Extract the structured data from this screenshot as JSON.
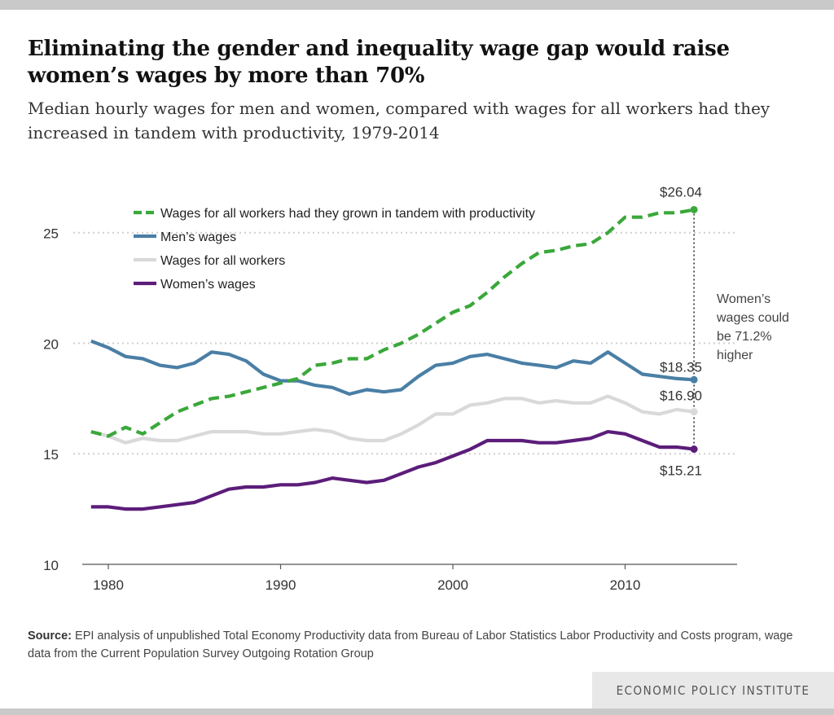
{
  "title": "Eliminating the gender and inequality wage gap would raise women’s wages by more than 70%",
  "subtitle": "Median hourly wages for men and women, compared with wages for all workers had they increased in tandem with productivity, 1979-2014",
  "source": {
    "label": "Source:",
    "text": " EPI analysis of unpublished Total Economy Productivity data from Bureau of Labor Statistics Labor Productivity and Costs program, wage data from the Current Population Survey Outgoing Rotation Group"
  },
  "footer": "ECONOMIC POLICY INSTITUTE",
  "annotation": {
    "lines": [
      "Women’s",
      "wages could",
      "be 71.2%",
      "higher"
    ]
  },
  "chart_data": {
    "type": "line",
    "x": [
      1979,
      1980,
      1981,
      1982,
      1983,
      1984,
      1985,
      1986,
      1987,
      1988,
      1989,
      1990,
      1991,
      1992,
      1993,
      1994,
      1995,
      1996,
      1997,
      1998,
      1999,
      2000,
      2001,
      2002,
      2003,
      2004,
      2005,
      2006,
      2007,
      2008,
      2009,
      2010,
      2011,
      2012,
      2013,
      2014
    ],
    "xticks": [
      1980,
      1990,
      2000,
      2010
    ],
    "yticks": [
      10,
      15,
      20,
      25
    ],
    "ylim": [
      10,
      26.5
    ],
    "xlim": [
      1977.4,
      2016.5
    ],
    "grid": true,
    "legend_position": "top-left",
    "series": [
      {
        "name": "Wages for all workers had they grown in tandem with productivity",
        "color": "#3aa83a",
        "dashed": true,
        "end_label": "$26.04",
        "values": [
          16.0,
          15.8,
          16.2,
          15.9,
          16.4,
          16.9,
          17.2,
          17.5,
          17.6,
          17.8,
          18.0,
          18.2,
          18.4,
          19.0,
          19.1,
          19.3,
          19.3,
          19.7,
          20.0,
          20.4,
          20.9,
          21.4,
          21.7,
          22.3,
          23.0,
          23.6,
          24.1,
          24.2,
          24.4,
          24.5,
          25.0,
          25.7,
          25.7,
          25.9,
          25.9,
          26.04
        ]
      },
      {
        "name": "Men’s wages",
        "color": "#4a7fa5",
        "dashed": false,
        "end_label": "$18.35",
        "values": [
          20.1,
          19.8,
          19.4,
          19.3,
          19.0,
          18.9,
          19.1,
          19.6,
          19.5,
          19.2,
          18.6,
          18.3,
          18.3,
          18.1,
          18.0,
          17.7,
          17.9,
          17.8,
          17.9,
          18.5,
          19.0,
          19.1,
          19.4,
          19.5,
          19.3,
          19.1,
          19.0,
          18.9,
          19.2,
          19.1,
          19.6,
          19.1,
          18.6,
          18.5,
          18.4,
          18.35
        ]
      },
      {
        "name": "Wages for all workers",
        "color": "#d9d9d9",
        "dashed": false,
        "end_label": "$16.90",
        "values": [
          16.0,
          15.8,
          15.5,
          15.7,
          15.6,
          15.6,
          15.8,
          16.0,
          16.0,
          16.0,
          15.9,
          15.9,
          16.0,
          16.1,
          16.0,
          15.7,
          15.6,
          15.6,
          15.9,
          16.3,
          16.8,
          16.8,
          17.2,
          17.3,
          17.5,
          17.5,
          17.3,
          17.4,
          17.3,
          17.3,
          17.6,
          17.3,
          16.9,
          16.8,
          17.0,
          16.9
        ]
      },
      {
        "name": "Women’s wages",
        "color": "#5c1d7a",
        "dashed": false,
        "end_label": "$15.21",
        "values": [
          12.6,
          12.6,
          12.5,
          12.5,
          12.6,
          12.7,
          12.8,
          13.1,
          13.4,
          13.5,
          13.5,
          13.6,
          13.6,
          13.7,
          13.9,
          13.8,
          13.7,
          13.8,
          14.1,
          14.4,
          14.6,
          14.9,
          15.2,
          15.6,
          15.6,
          15.6,
          15.5,
          15.5,
          15.6,
          15.7,
          16.0,
          15.9,
          15.6,
          15.3,
          15.3,
          15.21
        ]
      }
    ]
  }
}
